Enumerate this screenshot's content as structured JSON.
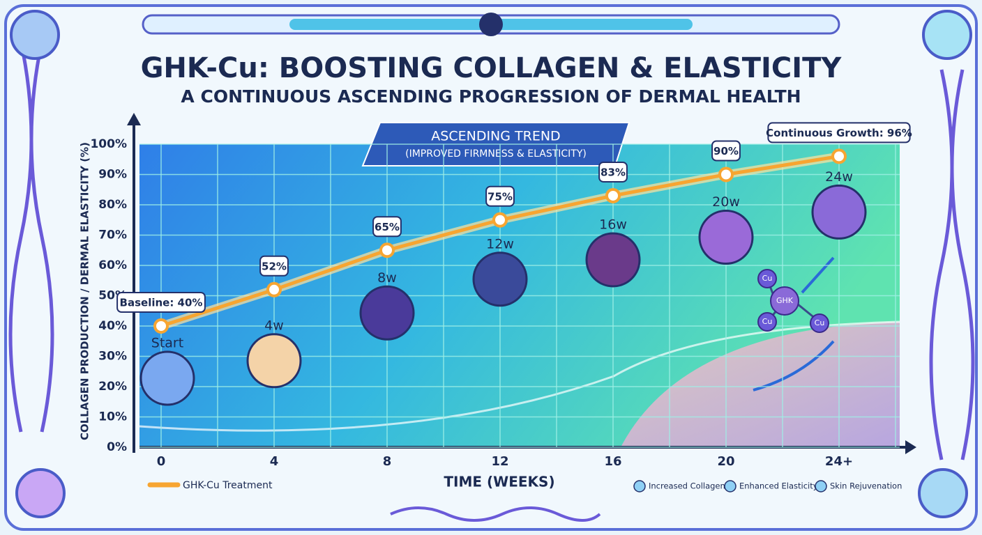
{
  "chart_data": {
    "type": "line",
    "title": "GHK-Cu: BOOSTING COLLAGEN & ELASTICITY",
    "subtitle": "A CONTINUOUS ASCENDING PROGRESSION OF DERMAL HEALTH",
    "y_label": "COLLAGEN PRODUCTION / DERMAL ELASTICITY (%)",
    "x_label": "TIME (WEEKS)",
    "categories": [
      "0",
      "4",
      "8",
      "12",
      "16",
      "20",
      "24+"
    ],
    "series": [
      {
        "name": "GHK-Cu Treatment",
        "color": "#f7a531",
        "values": [
          40,
          52,
          65,
          75,
          83,
          90,
          96
        ],
        "value_labels": [
          "Baseline: 40%",
          "52%",
          "65%",
          "75%",
          "83%",
          "90%",
          "Continuous Growth: 96%"
        ]
      }
    ],
    "ylim": [
      0,
      100
    ],
    "yticks": [
      {
        "value": 0,
        "label": "0%"
      },
      {
        "value": 10,
        "label": "10%"
      },
      {
        "value": 20,
        "label": "20%"
      },
      {
        "value": 30,
        "label": "30%"
      },
      {
        "value": 40,
        "label": "40%"
      },
      {
        "value": 50,
        "label": "50%"
      },
      {
        "value": 60,
        "label": "60%"
      },
      {
        "value": 70,
        "label": "70%"
      },
      {
        "value": 80,
        "label": "80%"
      },
      {
        "value": 90,
        "label": "90%"
      },
      {
        "value": 100,
        "label": "100%"
      }
    ],
    "grid": true,
    "legend": "bottom-left",
    "stage_labels": [
      "Start",
      "4w",
      "8w",
      "12w",
      "16w",
      "20w",
      "24w"
    ],
    "trend_title": "ASCENDING TREND",
    "trend_subtitle": "(IMPROVED FIRMNESS & ELASTICITY)",
    "molecule": {
      "center": "GHK",
      "atoms": [
        "Cu",
        "Cu",
        "Cu"
      ]
    },
    "benefits": [
      "Increased Collagen",
      "Enhanced Elasticity",
      "Skin Rejuvenation"
    ]
  }
}
